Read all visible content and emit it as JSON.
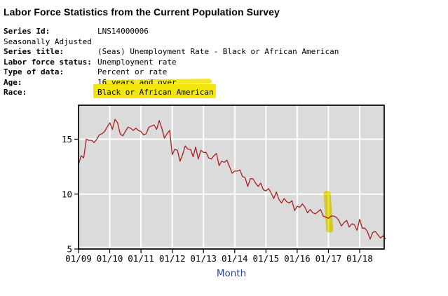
{
  "header": {
    "title": "Labor Force Statistics from the Current Population Survey"
  },
  "metadata": {
    "rows": [
      {
        "label": "Series Id:",
        "value": "LNS14000006"
      },
      {
        "label": "Seasonally Adjusted",
        "value": ""
      },
      {
        "label": "Series title:",
        "value": "(Seas) Unemployment Rate - Black or African American"
      },
      {
        "label": "Labor force status:",
        "value": "Unemployment rate"
      },
      {
        "label": "Type of data:",
        "value": "Percent or rate"
      },
      {
        "label": "Age:",
        "value": "16 years and over"
      },
      {
        "label": "Race:",
        "value": "Black or African American"
      }
    ]
  },
  "colors": {
    "highlighter": "#f2e60e",
    "line": "#aa1f1f",
    "plot_bg": "#dbdbdb",
    "grid": "#ffffff",
    "axis": "#000000",
    "xlabel_blue": "#2a4599"
  },
  "annotations": {
    "race_value_highlighted": true,
    "age_row_streak": true,
    "chart_mark": {
      "near_xtick": "01/17",
      "month_index": 96,
      "value_range": [
        6.5,
        10.3
      ]
    }
  },
  "chart_data": {
    "type": "line",
    "title": "",
    "xlabel": "Month",
    "ylabel": "",
    "series_name": "(Seas) Unemployment Rate - Black or African American",
    "frequency": "monthly",
    "x_start": "2009-01",
    "x_end": "2018-11",
    "xticks": [
      "01/09",
      "01/10",
      "01/11",
      "01/12",
      "01/13",
      "01/14",
      "01/15",
      "01/16",
      "01/17",
      "01/18"
    ],
    "yticks": [
      5,
      10,
      15
    ],
    "ylim": [
      5,
      18.1
    ],
    "grid": true,
    "legend": "none",
    "values": [
      12.7,
      13.5,
      13.3,
      15.0,
      14.9,
      14.9,
      14.7,
      15.0,
      15.4,
      15.5,
      15.7,
      16.1,
      16.5,
      15.9,
      16.8,
      16.5,
      15.5,
      15.3,
      15.7,
      16.1,
      16.0,
      15.8,
      16.0,
      15.8,
      15.7,
      15.4,
      15.5,
      16.1,
      16.2,
      16.3,
      15.9,
      16.7,
      16.0,
      15.1,
      15.5,
      15.8,
      13.6,
      14.1,
      14.0,
      13.0,
      13.6,
      14.4,
      14.1,
      14.1,
      13.4,
      14.3,
      13.2,
      14.0,
      13.8,
      13.8,
      13.3,
      13.2,
      13.5,
      13.7,
      12.6,
      13.0,
      12.9,
      13.1,
      12.5,
      11.9,
      12.1,
      12.1,
      12.2,
      11.6,
      11.5,
      10.7,
      11.4,
      11.4,
      11.0,
      10.7,
      11.0,
      10.4,
      10.3,
      10.5,
      10.1,
      9.6,
      10.2,
      9.5,
      9.2,
      9.6,
      9.3,
      9.2,
      9.4,
      8.5,
      8.9,
      8.8,
      9.1,
      8.8,
      8.3,
      8.6,
      8.3,
      8.2,
      8.4,
      8.6,
      8.0,
      7.9,
      7.8,
      8.0,
      8.0,
      7.9,
      7.6,
      7.1,
      7.4,
      7.6,
      7.0,
      7.3,
      7.2,
      6.7,
      7.7,
      6.9,
      6.9,
      6.6,
      5.9,
      6.5,
      6.6,
      6.3,
      6.0,
      6.2,
      5.9
    ]
  }
}
